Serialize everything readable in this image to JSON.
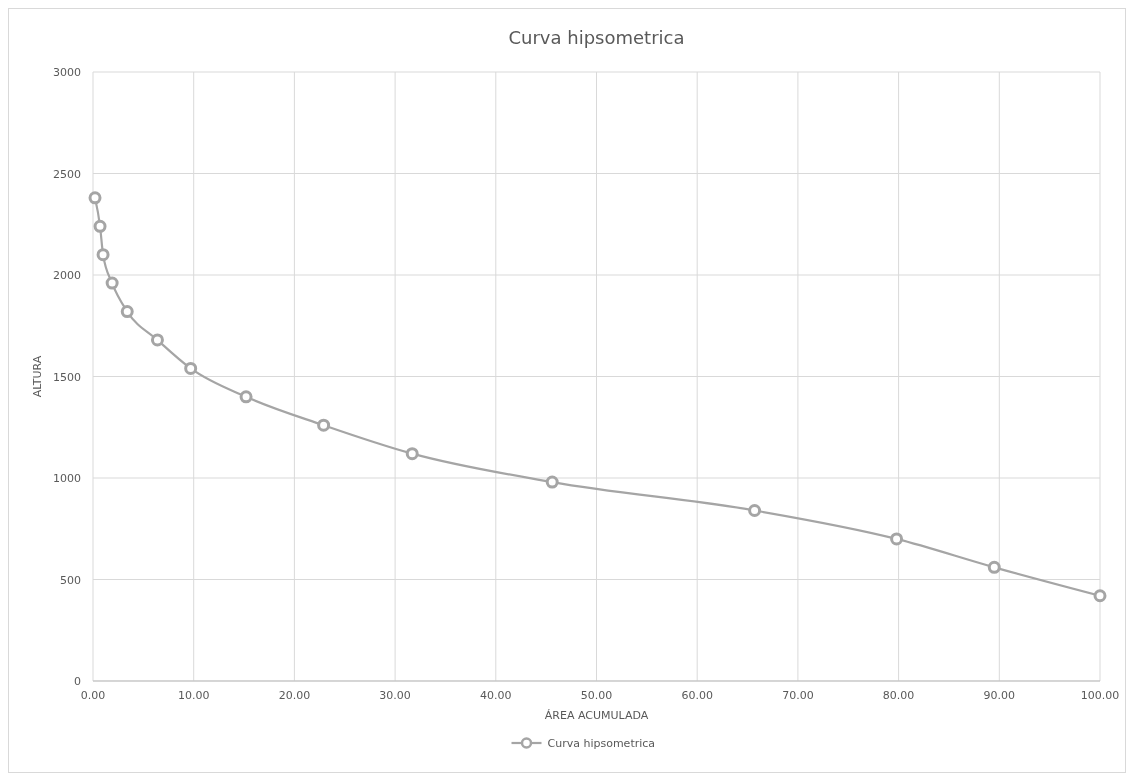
{
  "chart_data": {
    "type": "line",
    "title": "Curva hipsometrica",
    "xlabel": "ÁREA ACUMULADA",
    "ylabel": "ALTURA",
    "x": [
      0.2,
      0.7,
      1.0,
      1.9,
      3.4,
      6.4,
      9.7,
      15.2,
      22.9,
      31.7,
      45.6,
      65.7,
      79.8,
      89.5,
      100
    ],
    "series": [
      {
        "name": "Curva hipsometrica",
        "color": "#a5a5a5",
        "values": [
          2380,
          2240,
          2100,
          1960,
          1820,
          1680,
          1540,
          1400,
          1260,
          1120,
          980,
          840,
          700,
          560,
          420
        ]
      }
    ],
    "xlim": [
      0,
      100
    ],
    "xticks": [
      {
        "value": 0,
        "label": "0.00"
      },
      {
        "value": 10,
        "label": "10.00"
      },
      {
        "value": 20,
        "label": "20.00"
      },
      {
        "value": 30,
        "label": "30.00"
      },
      {
        "value": 40,
        "label": "40.00"
      },
      {
        "value": 50,
        "label": "50.00"
      },
      {
        "value": 60,
        "label": "60.00"
      },
      {
        "value": 70,
        "label": "70.00"
      },
      {
        "value": 80,
        "label": "80.00"
      },
      {
        "value": 90,
        "label": "90.00"
      },
      {
        "value": 100,
        "label": "100.00"
      }
    ],
    "ylim": [
      0,
      3000
    ],
    "yticks": [
      0,
      500,
      1000,
      1500,
      2000,
      2500,
      3000
    ],
    "grid": true,
    "legend": "bottom",
    "marker": "circle",
    "line_style": "solid"
  }
}
